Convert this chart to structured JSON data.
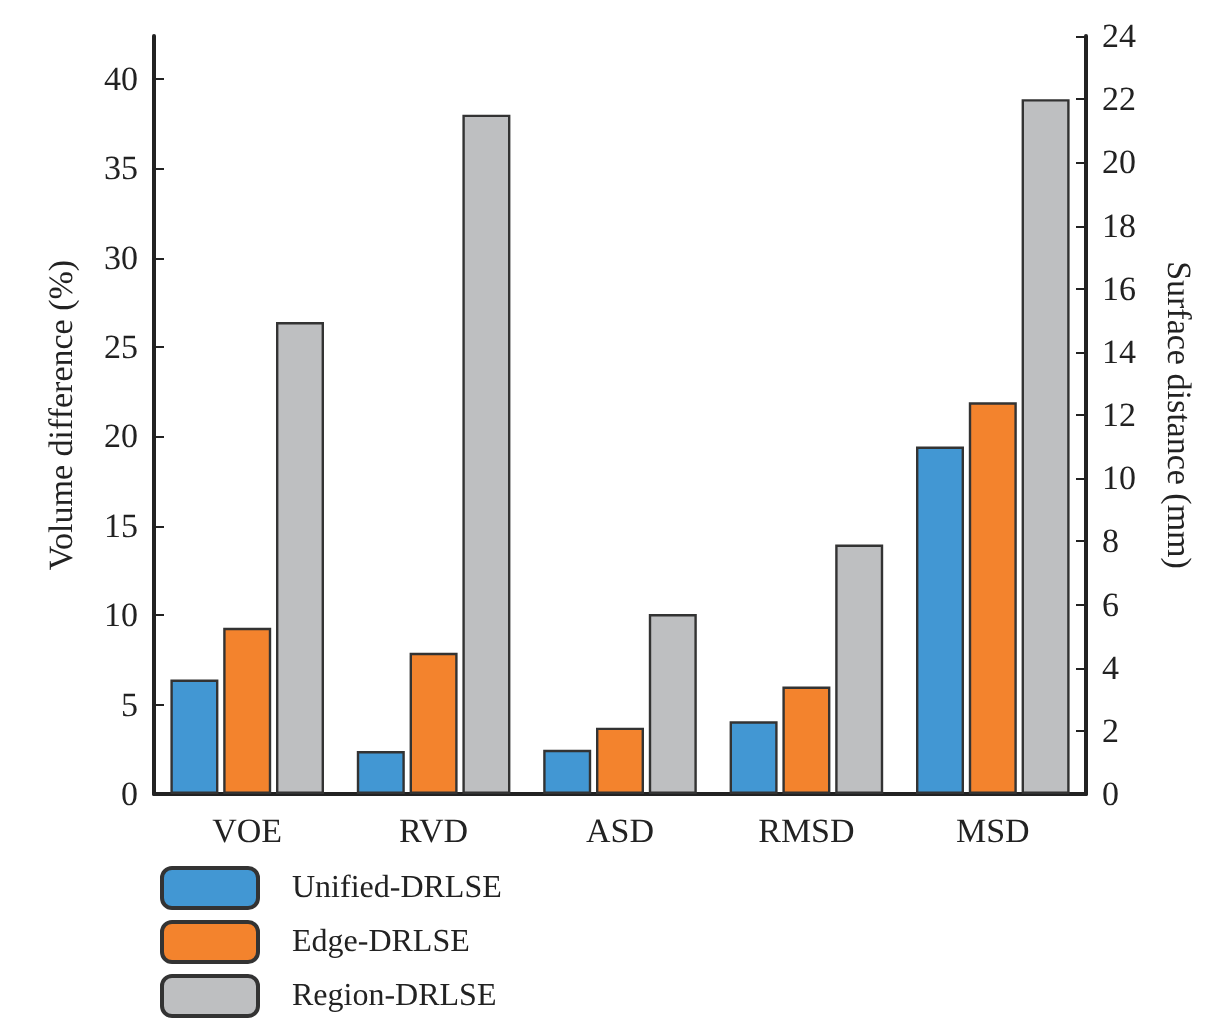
{
  "chart_data": {
    "type": "bar",
    "ylabel": "Volume difference (%)",
    "y2label": "Surface distance (mm)",
    "categories": [
      "VOE",
      "RVD",
      "ASD",
      "RMSD",
      "MSD"
    ],
    "series": [
      {
        "name": "Unified-DRLSE",
        "color": "#4297d3",
        "values": [
          6.4,
          2.4,
          null,
          null,
          null
        ]
      },
      {
        "name": "Edge-DRLSE",
        "color": "#f3832d",
        "values": [
          9.3,
          7.9,
          null,
          null,
          null
        ]
      },
      {
        "name": "Region-DRLSE",
        "color": "#bebfc1",
        "values": [
          26.4,
          38.0,
          null,
          null,
          null
        ]
      },
      {
        "color": "#4297d3",
        "axis": "y2",
        "values": [
          null,
          null,
          1.4,
          2.3,
          11.0
        ]
      },
      {
        "color": "#f3832d",
        "axis": "y2",
        "values": [
          null,
          null,
          2.1,
          3.4,
          12.4
        ]
      },
      {
        "color": "#bebfc1",
        "axis": "y2",
        "values": [
          null,
          null,
          5.7,
          7.9,
          22.0
        ]
      }
    ],
    "ylim": [
      0,
      42.4
    ],
    "yticks": [
      0,
      5,
      10,
      15,
      20,
      25,
      30,
      35,
      40
    ],
    "y2lim": [
      0,
      24
    ],
    "y2ticks": [
      0,
      2,
      4,
      6,
      8,
      10,
      12,
      14,
      16,
      18,
      20,
      22,
      24
    ],
    "grid": false,
    "legend": "bottom left"
  }
}
